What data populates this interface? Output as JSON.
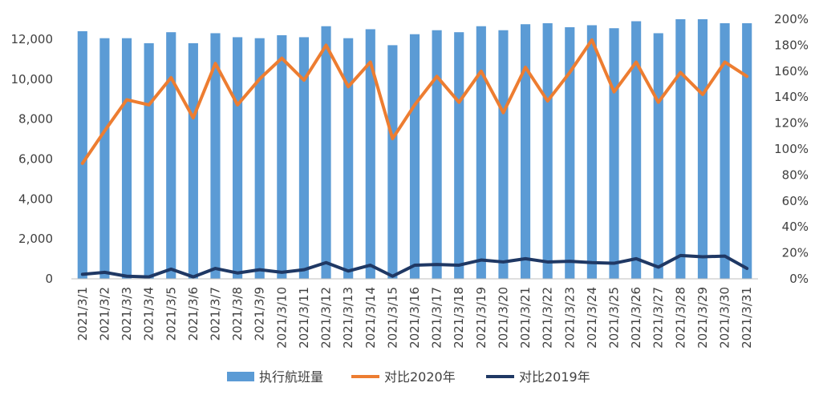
{
  "chart_data": {
    "type": "bar+line",
    "categories": [
      "2021/3/1",
      "2021/3/2",
      "2021/3/3",
      "2021/3/4",
      "2021/3/5",
      "2021/3/6",
      "2021/3/7",
      "2021/3/8",
      "2021/3/9",
      "2021/3/10",
      "2021/3/11",
      "2021/3/12",
      "2021/3/13",
      "2021/3/14",
      "2021/3/15",
      "2021/3/16",
      "2021/3/17",
      "2021/3/18",
      "2021/3/19",
      "2021/3/20",
      "2021/3/21",
      "2021/3/22",
      "2021/3/23",
      "2021/3/24",
      "2021/3/25",
      "2021/3/26",
      "2021/3/27",
      "2021/3/28",
      "2021/3/29",
      "2021/3/30",
      "2021/3/31"
    ],
    "bar_series": {
      "name": "执行航班量",
      "color": "#5B9BD5",
      "axis": "left",
      "values": [
        12400,
        12050,
        12050,
        11800,
        12350,
        11800,
        12300,
        12100,
        12050,
        12200,
        12100,
        12650,
        12050,
        12500,
        11700,
        12250,
        12450,
        12350,
        12650,
        12450,
        12750,
        12800,
        12600,
        12700,
        12550,
        12900,
        12300,
        13000,
        13000,
        12800,
        12800
      ]
    },
    "line_series": [
      {
        "name": "对比2020年",
        "color": "#ED7D31",
        "axis": "right",
        "values": [
          0.89,
          1.14,
          1.38,
          1.34,
          1.55,
          1.24,
          1.66,
          1.34,
          1.54,
          1.7,
          1.53,
          1.8,
          1.48,
          1.67,
          1.08,
          1.34,
          1.56,
          1.36,
          1.6,
          1.28,
          1.63,
          1.37,
          1.59,
          1.84,
          1.44,
          1.67,
          1.36,
          1.59,
          1.42,
          1.67,
          1.56
        ]
      },
      {
        "name": "对比2019年",
        "color": "#1F3864",
        "axis": "right",
        "values": [
          0.035,
          0.05,
          0.02,
          0.015,
          0.075,
          0.015,
          0.08,
          0.045,
          0.07,
          0.05,
          0.07,
          0.125,
          0.06,
          0.105,
          0.02,
          0.105,
          0.11,
          0.105,
          0.145,
          0.13,
          0.155,
          0.13,
          0.135,
          0.125,
          0.12,
          0.155,
          0.09,
          0.18,
          0.17,
          0.175,
          0.08
        ]
      }
    ],
    "y_left": {
      "ylim": [
        0,
        13000
      ],
      "ticks": [
        0,
        2000,
        4000,
        6000,
        8000,
        10000,
        12000
      ],
      "tick_labels": [
        "0",
        "2,000",
        "4,000",
        "6,000",
        "8,000",
        "10,000",
        "12,000"
      ]
    },
    "y_right": {
      "ylim": [
        0,
        2.0
      ],
      "ticks": [
        0,
        0.2,
        0.4,
        0.6,
        0.8,
        1.0,
        1.2,
        1.4,
        1.6,
        1.8,
        2.0
      ],
      "tick_labels": [
        "0%",
        "20%",
        "40%",
        "60%",
        "80%",
        "100%",
        "120%",
        "140%",
        "160%",
        "180%",
        "200%"
      ]
    },
    "title": "",
    "grid": false,
    "legend_position": "bottom"
  }
}
